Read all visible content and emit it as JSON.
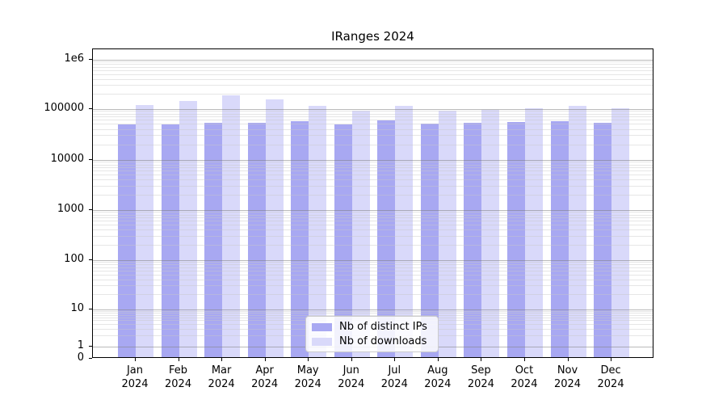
{
  "chart_data": {
    "type": "bar",
    "title": "IRanges 2024",
    "categories": [
      "Jan",
      "Feb",
      "Mar",
      "Apr",
      "May",
      "Jun",
      "Jul",
      "Aug",
      "Sep",
      "Oct",
      "Nov",
      "Dec"
    ],
    "year_label": "2024",
    "series": [
      {
        "name": "Nb of distinct IPs",
        "color": "#a8a8f2",
        "values": [
          49000,
          49000,
          53000,
          53000,
          57000,
          49000,
          58000,
          50000,
          53000,
          55000,
          57000,
          53000
        ]
      },
      {
        "name": "Nb of downloads",
        "color": "#d9d9fa",
        "values": [
          118000,
          142000,
          190000,
          152000,
          114000,
          92000,
          113000,
          90000,
          96000,
          101000,
          114000,
          101000
        ]
      }
    ],
    "yscale": "symlog",
    "ylim": [
      0,
      1600000
    ],
    "ytick_labels": [
      "1e6",
      "100000",
      "10000",
      "1000",
      "100",
      "10",
      "1",
      "0"
    ],
    "ytick_values": [
      1000000,
      100000,
      10000,
      1000,
      100,
      10,
      1,
      0
    ],
    "grid": "both",
    "legend_position": "lower center"
  }
}
